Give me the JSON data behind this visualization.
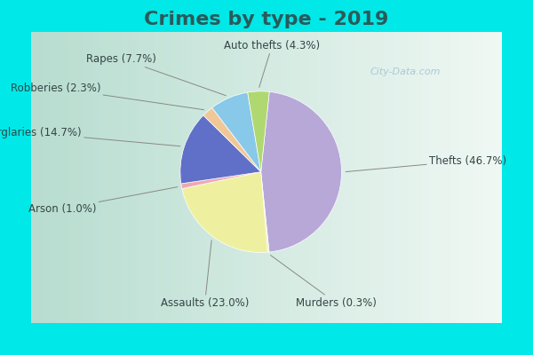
{
  "title": "Crimes by type - 2019",
  "title_color": "#2a5a5a",
  "slices": [
    {
      "label": "Thefts",
      "pct": 46.7,
      "color": "#b8a8d8"
    },
    {
      "label": "Murders",
      "pct": 0.3,
      "color": "#f0eeaa"
    },
    {
      "label": "Assaults",
      "pct": 23.0,
      "color": "#eef0a0"
    },
    {
      "label": "Arson",
      "pct": 1.0,
      "color": "#f0a8b0"
    },
    {
      "label": "Burglaries",
      "pct": 14.7,
      "color": "#6070c8"
    },
    {
      "label": "Robberies",
      "pct": 2.3,
      "color": "#f0c898"
    },
    {
      "label": "Rapes",
      "pct": 7.7,
      "color": "#88c8e8"
    },
    {
      "label": "Auto thefts",
      "pct": 4.3,
      "color": "#b0d870"
    }
  ],
  "bg_cyan": "#00e8e8",
  "bg_green_left": "#b8ddd0",
  "bg_white_right": "#e8f4f0",
  "watermark": "City-Data.com",
  "title_fontsize": 16,
  "label_fontsize": 8.5,
  "label_color": "#334444"
}
